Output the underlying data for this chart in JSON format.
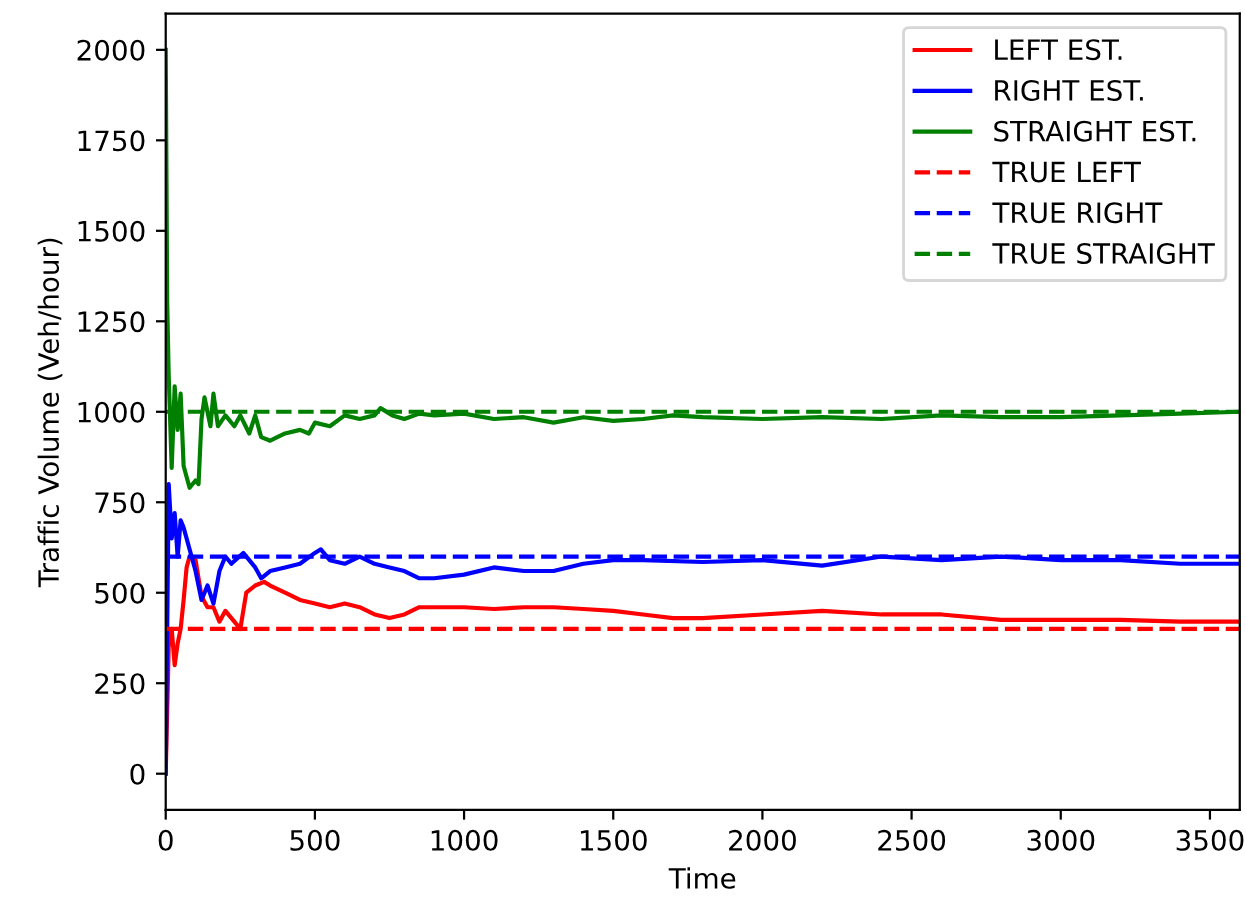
{
  "chart_data": {
    "type": "line",
    "xlabel": "Time",
    "ylabel": "Traffic Volume (Veh/hour)",
    "xlim": [
      0,
      3600
    ],
    "ylim": [
      -100,
      2100
    ],
    "xticks": [
      0,
      500,
      1000,
      1500,
      2000,
      2500,
      3000,
      3500
    ],
    "yticks": [
      0,
      250,
      500,
      750,
      1000,
      1250,
      1500,
      1750,
      2000
    ],
    "legend": "top right",
    "grid": false,
    "series": [
      {
        "name": "LEFT EST.",
        "color": "#ff0000",
        "line_style": "solid",
        "x": [
          0,
          10,
          20,
          30,
          40,
          50,
          60,
          70,
          80,
          100,
          120,
          140,
          160,
          180,
          200,
          230,
          250,
          270,
          300,
          330,
          350,
          400,
          450,
          500,
          550,
          600,
          650,
          700,
          750,
          800,
          850,
          900,
          1000,
          1100,
          1200,
          1300,
          1400,
          1500,
          1600,
          1700,
          1800,
          2000,
          2200,
          2400,
          2600,
          2800,
          3000,
          3200,
          3400,
          3600
        ],
        "values": [
          0,
          350,
          400,
          300,
          360,
          400,
          480,
          570,
          600,
          590,
          490,
          460,
          460,
          420,
          450,
          420,
          400,
          500,
          520,
          530,
          520,
          500,
          480,
          470,
          460,
          470,
          460,
          440,
          430,
          440,
          460,
          460,
          460,
          455,
          460,
          460,
          455,
          450,
          440,
          430,
          430,
          440,
          450,
          440,
          440,
          425,
          425,
          425,
          420,
          420
        ]
      },
      {
        "name": "RIGHT EST.",
        "color": "#0000ff",
        "line_style": "solid",
        "x": [
          0,
          10,
          20,
          30,
          40,
          50,
          60,
          80,
          100,
          120,
          140,
          160,
          180,
          200,
          220,
          260,
          300,
          320,
          350,
          400,
          450,
          500,
          520,
          550,
          600,
          650,
          700,
          750,
          800,
          850,
          900,
          1000,
          1100,
          1200,
          1300,
          1400,
          1500,
          1600,
          1800,
          2000,
          2200,
          2400,
          2600,
          2800,
          3000,
          3200,
          3400,
          3600
        ],
        "values": [
          0,
          800,
          650,
          720,
          600,
          700,
          680,
          620,
          560,
          480,
          520,
          470,
          560,
          600,
          580,
          610,
          570,
          540,
          560,
          570,
          580,
          610,
          620,
          590,
          580,
          600,
          580,
          570,
          560,
          540,
          540,
          550,
          570,
          560,
          560,
          580,
          590,
          590,
          585,
          590,
          575,
          600,
          590,
          600,
          590,
          590,
          580,
          580
        ]
      },
      {
        "name": "STRAIGHT EST.",
        "color": "#008000",
        "line_style": "solid",
        "x": [
          0,
          5,
          10,
          20,
          30,
          40,
          50,
          60,
          80,
          100,
          110,
          120,
          130,
          150,
          160,
          175,
          200,
          230,
          250,
          280,
          300,
          320,
          350,
          400,
          450,
          480,
          500,
          550,
          600,
          650,
          700,
          720,
          760,
          800,
          850,
          900,
          1000,
          1100,
          1200,
          1300,
          1400,
          1500,
          1600,
          1700,
          1800,
          2000,
          2200,
          2400,
          2600,
          2800,
          3000,
          3200,
          3400,
          3600
        ],
        "values": [
          2000,
          1300,
          1100,
          845,
          1070,
          950,
          1050,
          850,
          790,
          810,
          800,
          980,
          1040,
          960,
          1050,
          960,
          990,
          960,
          990,
          940,
          990,
          930,
          920,
          940,
          950,
          940,
          970,
          960,
          990,
          980,
          990,
          1010,
          990,
          980,
          995,
          990,
          995,
          980,
          985,
          970,
          985,
          975,
          980,
          990,
          985,
          980,
          985,
          980,
          990,
          985,
          985,
          990,
          995,
          1000
        ]
      },
      {
        "name": "TRUE LEFT",
        "color": "#ff0000",
        "line_style": "dashed",
        "x": [
          0,
          3600
        ],
        "values": [
          400,
          400
        ]
      },
      {
        "name": "TRUE RIGHT",
        "color": "#0000ff",
        "line_style": "dashed",
        "x": [
          0,
          3600
        ],
        "values": [
          600,
          600
        ]
      },
      {
        "name": "TRUE STRAIGHT",
        "color": "#008000",
        "line_style": "dashed",
        "x": [
          0,
          3600
        ],
        "values": [
          1000,
          1000
        ]
      }
    ]
  }
}
